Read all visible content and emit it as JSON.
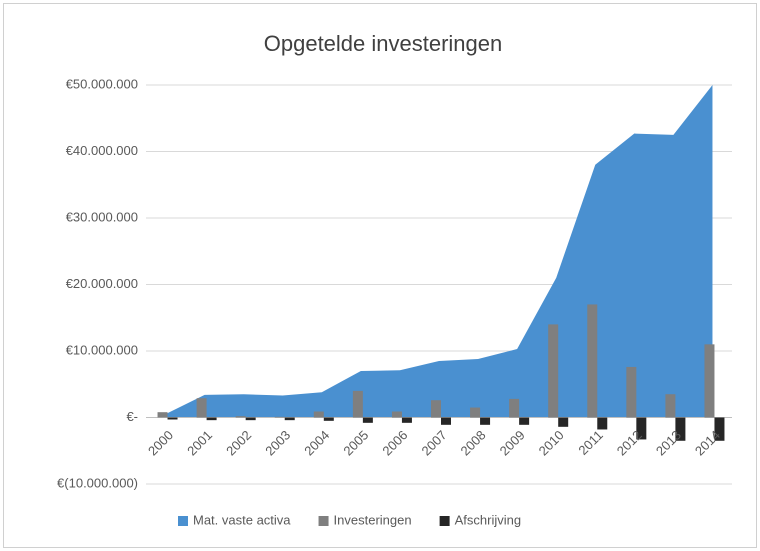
{
  "chart_data": {
    "type": "combo",
    "title": "Opgetelde investeringen",
    "categories": [
      "2000",
      "2001",
      "2002",
      "2003",
      "2004",
      "2005",
      "2006",
      "2007",
      "2008",
      "2009",
      "2010",
      "2011",
      "2012",
      "2013",
      "2014"
    ],
    "series": [
      {
        "name": "Mat. vaste activa",
        "type": "area",
        "color": "#4a90d0",
        "values": [
          500000,
          3400000,
          3500000,
          3300000,
          3800000,
          7000000,
          7100000,
          8500000,
          8800000,
          10300000,
          21000000,
          38000000,
          42700000,
          42500000,
          50000000
        ]
      },
      {
        "name": "Investeringen",
        "type": "bar",
        "color": "#7f7f7f",
        "values": [
          800000,
          2900000,
          200000,
          100000,
          900000,
          4000000,
          900000,
          2600000,
          1500000,
          2800000,
          14000000,
          17000000,
          7600000,
          3500000,
          11000000
        ]
      },
      {
        "name": "Afschrijving",
        "type": "bar",
        "color": "#262626",
        "values": [
          -300000,
          -400000,
          -400000,
          -400000,
          -500000,
          -800000,
          -800000,
          -1100000,
          -1100000,
          -1100000,
          -1400000,
          -1800000,
          -3300000,
          -3500000,
          -3500000
        ]
      }
    ],
    "ylim": [
      -10000000,
      50000000
    ],
    "yticks": [
      {
        "value": -10000000,
        "label": "€(10.000.000)"
      },
      {
        "value": 0,
        "label": "€-"
      },
      {
        "value": 10000000,
        "label": "€10.000.000"
      },
      {
        "value": 20000000,
        "label": "€20.000.000"
      },
      {
        "value": 30000000,
        "label": "€30.000.000"
      },
      {
        "value": 40000000,
        "label": "€40.000.000"
      },
      {
        "value": 50000000,
        "label": "€50.000.000"
      }
    ],
    "grid": true,
    "legend": "bottom"
  }
}
